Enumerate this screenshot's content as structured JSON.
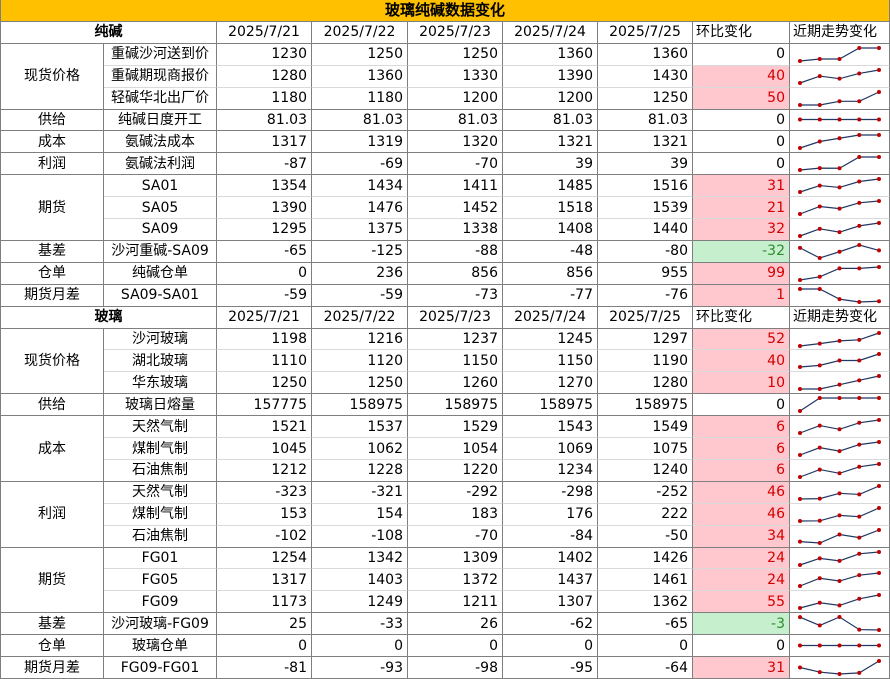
{
  "chart_data": {
    "type": "table",
    "title": "玻璃纯碱数据变化",
    "sections": [
      {
        "name": "纯碱",
        "dates": [
          "2025/7/21",
          "2025/7/22",
          "2025/7/23",
          "2025/7/24",
          "2025/7/25"
        ],
        "change_header": "环比变化",
        "trend_header": "近期走势变化",
        "groups": [
          {
            "category": "现货价格",
            "rows": [
              {
                "item": "重碱沙河送到价",
                "values": [
                  1230,
                  1250,
                  1250,
                  1360,
                  1360
                ],
                "change": 0
              },
              {
                "item": "重碱期现商报价",
                "values": [
                  1280,
                  1360,
                  1330,
                  1390,
                  1430
                ],
                "change": 40
              },
              {
                "item": "轻碱华北出厂价",
                "values": [
                  1180,
                  1180,
                  1200,
                  1200,
                  1250
                ],
                "change": 50
              }
            ]
          },
          {
            "category": "供给",
            "rows": [
              {
                "item": "纯碱日度开工",
                "values": [
                  81.03,
                  81.03,
                  81.03,
                  81.03,
                  81.03
                ],
                "change": 0
              }
            ]
          },
          {
            "category": "成本",
            "rows": [
              {
                "item": "氨碱法成本",
                "values": [
                  1317,
                  1319,
                  1320,
                  1321,
                  1321
                ],
                "change": 0
              }
            ]
          },
          {
            "category": "利润",
            "rows": [
              {
                "item": "氨碱法利润",
                "values": [
                  -87,
                  -69,
                  -70,
                  39,
                  39
                ],
                "change": 0
              }
            ]
          },
          {
            "category": "期货",
            "rows": [
              {
                "item": "SA01",
                "values": [
                  1354,
                  1434,
                  1411,
                  1485,
                  1516
                ],
                "change": 31
              },
              {
                "item": "SA05",
                "values": [
                  1390,
                  1476,
                  1452,
                  1518,
                  1539
                ],
                "change": 21
              },
              {
                "item": "SA09",
                "values": [
                  1295,
                  1375,
                  1338,
                  1408,
                  1440
                ],
                "change": 32
              }
            ]
          },
          {
            "category": "基差",
            "rows": [
              {
                "item": "沙河重碱-SA09",
                "values": [
                  -65,
                  -125,
                  -88,
                  -48,
                  -80
                ],
                "change": -32
              }
            ]
          },
          {
            "category": "仓单",
            "rows": [
              {
                "item": "纯碱仓单",
                "values": [
                  0,
                  236,
                  856,
                  856,
                  955
                ],
                "change": 99
              }
            ]
          },
          {
            "category": "期货月差",
            "rows": [
              {
                "item": "SA09-SA01",
                "values": [
                  -59,
                  -59,
                  -73,
                  -77,
                  -76
                ],
                "change": 1
              }
            ]
          }
        ]
      },
      {
        "name": "玻璃",
        "dates": [
          "2025/7/21",
          "2025/7/22",
          "2025/7/23",
          "2025/7/24",
          "2025/7/25"
        ],
        "change_header": "环比变化",
        "trend_header": "近期走势变化",
        "groups": [
          {
            "category": "现货价格",
            "rows": [
              {
                "item": "沙河玻璃",
                "values": [
                  1198,
                  1216,
                  1237,
                  1245,
                  1297
                ],
                "change": 52
              },
              {
                "item": "湖北玻璃",
                "values": [
                  1110,
                  1120,
                  1150,
                  1150,
                  1190
                ],
                "change": 40
              },
              {
                "item": "华东玻璃",
                "values": [
                  1250,
                  1250,
                  1260,
                  1270,
                  1280
                ],
                "change": 10
              }
            ]
          },
          {
            "category": "供给",
            "rows": [
              {
                "item": "玻璃日熔量",
                "values": [
                  157775,
                  158975,
                  158975,
                  158975,
                  158975
                ],
                "change": 0
              }
            ]
          },
          {
            "category": "成本",
            "rows": [
              {
                "item": "天然气制",
                "values": [
                  1521,
                  1537,
                  1529,
                  1543,
                  1549
                ],
                "change": 6
              },
              {
                "item": "煤制气制",
                "values": [
                  1045,
                  1062,
                  1054,
                  1069,
                  1075
                ],
                "change": 6
              },
              {
                "item": "石油焦制",
                "values": [
                  1212,
                  1228,
                  1220,
                  1234,
                  1240
                ],
                "change": 6
              }
            ]
          },
          {
            "category": "利润",
            "rows": [
              {
                "item": "天然气制",
                "values": [
                  -323,
                  -321,
                  -292,
                  -298,
                  -252
                ],
                "change": 46
              },
              {
                "item": "煤制气制",
                "values": [
                  153,
                  154,
                  183,
                  176,
                  222
                ],
                "change": 46
              },
              {
                "item": "石油焦制",
                "values": [
                  -102,
                  -108,
                  -70,
                  -84,
                  -50
                ],
                "change": 34
              }
            ]
          },
          {
            "category": "期货",
            "rows": [
              {
                "item": "FG01",
                "values": [
                  1254,
                  1342,
                  1309,
                  1402,
                  1426
                ],
                "change": 24
              },
              {
                "item": "FG05",
                "values": [
                  1317,
                  1403,
                  1372,
                  1437,
                  1461
                ],
                "change": 24
              },
              {
                "item": "FG09",
                "values": [
                  1173,
                  1249,
                  1211,
                  1307,
                  1362
                ],
                "change": 55
              }
            ]
          },
          {
            "category": "基差",
            "rows": [
              {
                "item": "沙河玻璃-FG09",
                "values": [
                  25,
                  -33,
                  26,
                  -62,
                  -65
                ],
                "change": -3
              }
            ]
          },
          {
            "category": "仓单",
            "rows": [
              {
                "item": "玻璃仓单",
                "values": [
                  0,
                  0,
                  0,
                  0,
                  0
                ],
                "change": 0
              }
            ]
          },
          {
            "category": "期货月差",
            "rows": [
              {
                "item": "FG09-FG01",
                "values": [
                  -81,
                  -93,
                  -98,
                  -95,
                  -64
                ],
                "change": 31
              }
            ]
          }
        ]
      }
    ]
  },
  "colors": {
    "title_bg": "#FFC000",
    "increase_fill": "#FFC7CE",
    "increase_text": "#D40000",
    "decrease_fill": "#C6EFCE",
    "decrease_text": "#2E8B2E",
    "sparkline_line": "#1F3864",
    "sparkline_marker": "#C00000"
  }
}
